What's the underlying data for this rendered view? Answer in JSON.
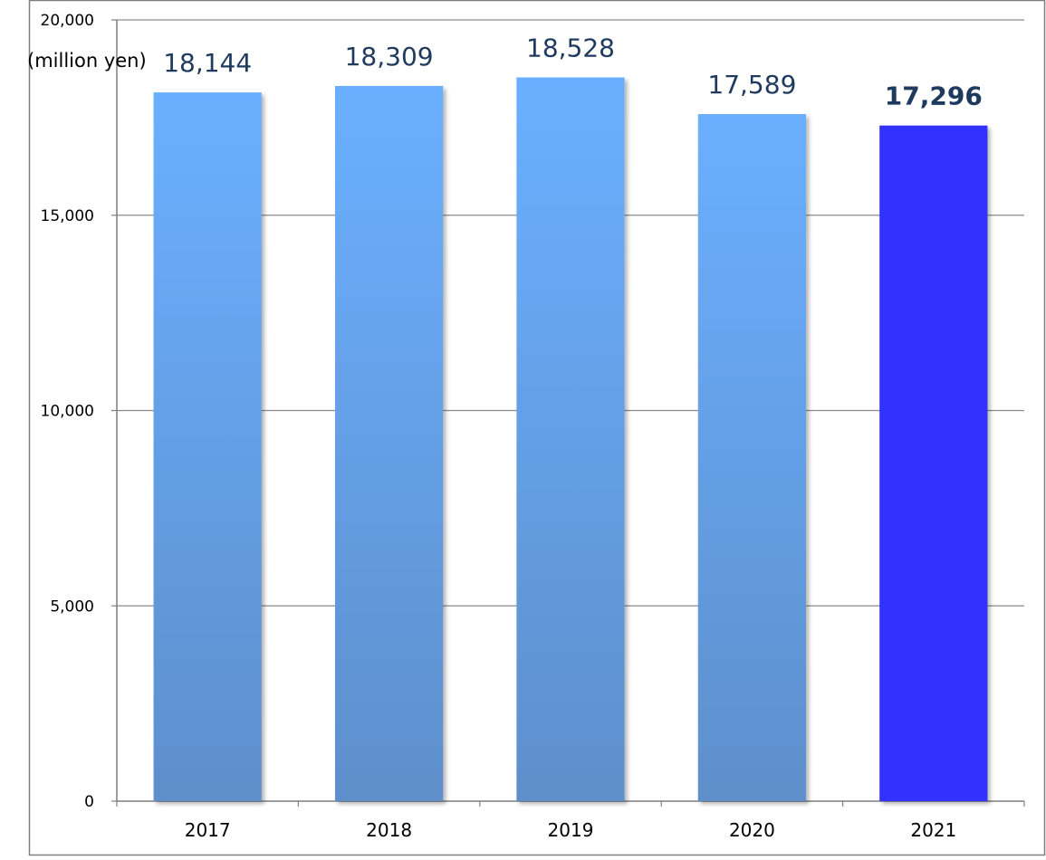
{
  "chart_data": {
    "type": "bar",
    "categories": [
      "2017",
      "2018",
      "2019",
      "2020",
      "2021"
    ],
    "values": [
      18144,
      18309,
      18528,
      17589,
      17296
    ],
    "value_labels": [
      "18,144",
      "18,309",
      "18,528",
      "17,589",
      "17,296"
    ],
    "highlighted_category": "2021",
    "ylabel": "(million yen)",
    "ylim": [
      0,
      20000
    ],
    "yticks": [
      0,
      5000,
      10000,
      15000,
      20000
    ],
    "ytick_labels": [
      "0",
      "5,000",
      "10,000",
      "15,000",
      "20,000"
    ],
    "grid": true,
    "legend": "none",
    "colors": {
      "bar_gradient_top": "#6aafff",
      "bar_gradient_bottom": "#5e8fcb",
      "highlight_bar": "#3333ff",
      "data_label_text": "#1f3a5f",
      "gridline": "#8c8c8c",
      "axis": "#7f7f7f"
    }
  }
}
